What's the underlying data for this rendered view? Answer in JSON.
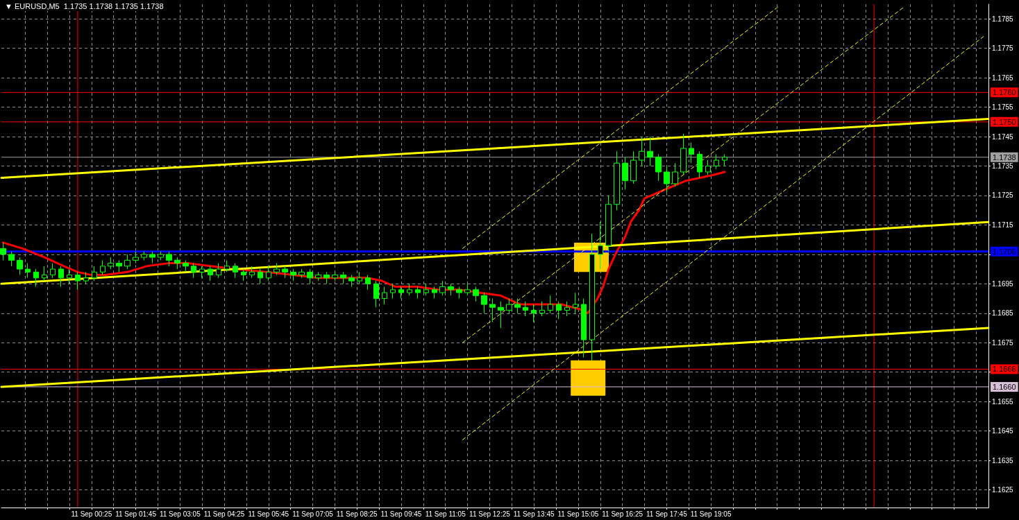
{
  "chart_data": {
    "type": "candlestick",
    "title": "▼ EURUSD,M5  1.1735 1.1738 1.1735 1.1738",
    "grid": true,
    "x": [
      "--09-10T21:45",
      "--09-10T22:00",
      "--09-10T22:15",
      "--09-10T22:30",
      "--09-10T22:45",
      "--09-10T23:00",
      "--09-10T23:15",
      "--09-10T23:30",
      "--09-10T23:45",
      "--09-11T00:00",
      "--09-11T00:15",
      "--09-11T00:30",
      "--09-11T00:45",
      "--09-11T01:00",
      "--09-11T01:15",
      "--09-11T01:30",
      "--09-11T01:45",
      "--09-11T02:00",
      "--09-11T02:15",
      "--09-11T02:30",
      "--09-11T02:45",
      "--09-11T03:00",
      "--09-11T03:15",
      "--09-11T03:30",
      "--09-11T03:45",
      "--09-11T04:00",
      "--09-11T04:15",
      "--09-11T04:30",
      "--09-11T04:45",
      "--09-11T05:00",
      "--09-11T05:15",
      "--09-11T05:30",
      "--09-11T05:45",
      "--09-11T06:00",
      "--09-11T06:15",
      "--09-11T06:30",
      "--09-11T06:45",
      "--09-11T07:00",
      "--09-11T07:15",
      "--09-11T07:30",
      "--09-11T07:45",
      "--09-11T08:00",
      "--09-11T08:15",
      "--09-11T08:30",
      "--09-11T08:45",
      "--09-11T09:00",
      "--09-11T09:15",
      "--09-11T09:30",
      "--09-11T09:45",
      "--09-11T10:00",
      "--09-11T10:15",
      "--09-11T10:30",
      "--09-11T10:45",
      "--09-11T11:00",
      "--09-11T11:15",
      "--09-11T11:30",
      "--09-11T11:45",
      "--09-11T12:00",
      "--09-11T12:15",
      "--09-11T12:30",
      "--09-11T12:45",
      "--09-11T13:00",
      "--09-11T13:15",
      "--09-11T13:30",
      "--09-11T13:45",
      "--09-11T14:00",
      "--09-11T14:15",
      "--09-11T14:30",
      "--09-11T14:45",
      "--09-11T15:00",
      "--09-11T15:15",
      "--09-11T15:30",
      "--09-11T15:45",
      "--09-11T16:00",
      "--09-11T16:15",
      "--09-11T16:30",
      "--09-11T16:45",
      "--09-11T17:00",
      "--09-11T17:15",
      "--09-11T17:30",
      "--09-11T17:45",
      "--09-11T18:00",
      "--09-11T18:15",
      "--09-11T18:30",
      "--09-11T18:45",
      "--09-11T19:00",
      "--09-11T19:15",
      "--09-11T19:30"
    ],
    "ohlc": [
      [
        1.1707,
        1.1709,
        1.1703,
        1.1705
      ],
      [
        1.1705,
        1.1706,
        1.1701,
        1.1703
      ],
      [
        1.1703,
        1.1704,
        1.1698,
        1.17
      ],
      [
        1.17,
        1.1702,
        1.1697,
        1.1699
      ],
      [
        1.1699,
        1.17,
        1.1694,
        1.1697
      ],
      [
        1.1697,
        1.1701,
        1.1696,
        1.1698
      ],
      [
        1.1698,
        1.1702,
        1.1697,
        1.17
      ],
      [
        1.17,
        1.1701,
        1.1694,
        1.1697
      ],
      [
        1.1697,
        1.17,
        1.1695,
        1.1698
      ],
      [
        1.1698,
        1.1699,
        1.1693,
        1.1696
      ],
      [
        1.1696,
        1.1699,
        1.1695,
        1.1697
      ],
      [
        1.1697,
        1.1701,
        1.1696,
        1.1699
      ],
      [
        1.1699,
        1.1703,
        1.1698,
        1.1701
      ],
      [
        1.1701,
        1.1704,
        1.17,
        1.1702
      ],
      [
        1.1702,
        1.1703,
        1.1699,
        1.1701
      ],
      [
        1.1701,
        1.1705,
        1.17,
        1.1703
      ],
      [
        1.1703,
        1.1706,
        1.1702,
        1.1704
      ],
      [
        1.1704,
        1.1706,
        1.1703,
        1.1705
      ],
      [
        1.1705,
        1.1706,
        1.1702,
        1.1704
      ],
      [
        1.1704,
        1.1706,
        1.1703,
        1.1705
      ],
      [
        1.1705,
        1.1706,
        1.1701,
        1.1703
      ],
      [
        1.1703,
        1.1704,
        1.17,
        1.1702
      ],
      [
        1.1702,
        1.1703,
        1.1699,
        1.1701
      ],
      [
        1.1701,
        1.1702,
        1.1697,
        1.1699
      ],
      [
        1.1699,
        1.1701,
        1.1697,
        1.17
      ],
      [
        1.17,
        1.1701,
        1.1696,
        1.1698
      ],
      [
        1.1698,
        1.1702,
        1.1697,
        1.17
      ],
      [
        1.17,
        1.1703,
        1.1699,
        1.1701
      ],
      [
        1.1701,
        1.1702,
        1.1697,
        1.1699
      ],
      [
        1.1699,
        1.17,
        1.1696,
        1.1698
      ],
      [
        1.1698,
        1.1701,
        1.1697,
        1.1699
      ],
      [
        1.1699,
        1.17,
        1.1695,
        1.1697
      ],
      [
        1.1697,
        1.1701,
        1.1696,
        1.1699
      ],
      [
        1.1699,
        1.1702,
        1.1698,
        1.17
      ],
      [
        1.17,
        1.1701,
        1.1697,
        1.1699
      ],
      [
        1.1699,
        1.17,
        1.1696,
        1.1698
      ],
      [
        1.1698,
        1.17,
        1.1697,
        1.1699
      ],
      [
        1.1699,
        1.17,
        1.1695,
        1.1697
      ],
      [
        1.1697,
        1.1699,
        1.1696,
        1.1698
      ],
      [
        1.1698,
        1.1699,
        1.1695,
        1.1697
      ],
      [
        1.1697,
        1.1699,
        1.1696,
        1.1698
      ],
      [
        1.1698,
        1.1699,
        1.1695,
        1.1697
      ],
      [
        1.1697,
        1.1698,
        1.1694,
        1.1696
      ],
      [
        1.1696,
        1.1699,
        1.1695,
        1.1697
      ],
      [
        1.1697,
        1.1698,
        1.1693,
        1.1695
      ],
      [
        1.1695,
        1.1696,
        1.1687,
        1.169
      ],
      [
        1.169,
        1.1694,
        1.1688,
        1.1692
      ],
      [
        1.1692,
        1.1695,
        1.169,
        1.1693
      ],
      [
        1.1693,
        1.1694,
        1.169,
        1.1692
      ],
      [
        1.1692,
        1.1695,
        1.1691,
        1.1693
      ],
      [
        1.1693,
        1.1694,
        1.169,
        1.1692
      ],
      [
        1.1692,
        1.1695,
        1.1691,
        1.1693
      ],
      [
        1.1693,
        1.1694,
        1.169,
        1.1692
      ],
      [
        1.1692,
        1.1696,
        1.1691,
        1.1694
      ],
      [
        1.1694,
        1.1695,
        1.1691,
        1.1693
      ],
      [
        1.1693,
        1.1694,
        1.169,
        1.1692
      ],
      [
        1.1692,
        1.1695,
        1.1691,
        1.1693
      ],
      [
        1.1693,
        1.1694,
        1.1689,
        1.1691
      ],
      [
        1.1691,
        1.1692,
        1.1685,
        1.1688
      ],
      [
        1.1688,
        1.169,
        1.1682,
        1.1687
      ],
      [
        1.1687,
        1.1689,
        1.168,
        1.1686
      ],
      [
        1.1686,
        1.169,
        1.1685,
        1.1688
      ],
      [
        1.1688,
        1.169,
        1.1685,
        1.1687
      ],
      [
        1.1687,
        1.1689,
        1.1684,
        1.1686
      ],
      [
        1.1686,
        1.1688,
        1.1682,
        1.1685
      ],
      [
        1.1685,
        1.1689,
        1.1684,
        1.1686
      ],
      [
        1.1686,
        1.1691,
        1.1685,
        1.1688
      ],
      [
        1.1688,
        1.1689,
        1.1683,
        1.1686
      ],
      [
        1.1686,
        1.1689,
        1.1684,
        1.1687
      ],
      [
        1.1687,
        1.1692,
        1.1685,
        1.1688
      ],
      [
        1.1688,
        1.169,
        1.167,
        1.1676
      ],
      [
        1.1676,
        1.1712,
        1.1669,
        1.1705
      ],
      [
        1.1705,
        1.1716,
        1.17,
        1.1708
      ],
      [
        1.1708,
        1.1725,
        1.1706,
        1.1722
      ],
      [
        1.1722,
        1.174,
        1.172,
        1.1736
      ],
      [
        1.1736,
        1.1738,
        1.1727,
        1.173
      ],
      [
        1.173,
        1.174,
        1.1729,
        1.1737
      ],
      [
        1.1737,
        1.1745,
        1.1735,
        1.174
      ],
      [
        1.174,
        1.1745,
        1.1735,
        1.1738
      ],
      [
        1.1738,
        1.1739,
        1.173,
        1.1733
      ],
      [
        1.1733,
        1.1735,
        1.1726,
        1.1729
      ],
      [
        1.1729,
        1.1736,
        1.1728,
        1.1733
      ],
      [
        1.1733,
        1.1746,
        1.1732,
        1.1741
      ],
      [
        1.1741,
        1.1743,
        1.1736,
        1.1739
      ],
      [
        1.1739,
        1.174,
        1.1731,
        1.1733
      ],
      [
        1.1733,
        1.1737,
        1.1732,
        1.1735
      ],
      [
        1.1735,
        1.1739,
        1.1734,
        1.1737
      ],
      [
        1.1737,
        1.1739,
        1.1735,
        1.1738
      ]
    ],
    "color": "#00ff00",
    "series": [
      {
        "type": "line",
        "color": "#ff0000",
        "marker": "none",
        "line_style": "solid",
        "x": [
          "--09-10T21:45",
          "--09-10T22:20",
          "--09-10T23:00",
          "--09-10T23:35",
          "--09-11T00:00",
          "--09-11T00:25",
          "--09-11T00:50",
          "--09-11T01:30",
          "--09-11T02:05",
          "--09-11T02:45",
          "--09-11T03:20",
          "--09-11T04:00",
          "--09-11T04:45",
          "--09-11T05:40",
          "--09-11T06:30",
          "--09-11T07:15",
          "--09-11T08:10",
          "--09-11T08:45",
          "--09-11T09:10",
          "--09-11T09:35",
          "--09-11T10:15",
          "--09-11T10:50",
          "--09-11T11:30",
          "--09-11T12:05",
          "--09-11T12:45",
          "--09-11T13:20",
          "--09-11T14:00",
          "--09-11T14:35",
          "--09-11T15:15",
          "--09-11T15:22",
          "--09-11T15:40",
          "--09-11T15:50",
          "--09-11T16:00",
          "--09-11T16:15",
          "--09-11T16:30",
          "--09-11T16:40",
          "--09-11T16:55",
          "--09-11T17:05",
          "--09-11T17:30",
          "--09-11T17:55",
          "--09-11T18:20",
          "--09-11T18:45",
          "--09-11T19:10",
          "--09-11T19:30"
        ],
        "values": [
          1.1709,
          1.1707,
          1.1704,
          1.1701,
          1.1699,
          1.1698,
          1.1698,
          1.1699,
          1.1701,
          1.1702,
          1.1702,
          1.1701,
          1.17,
          1.1699,
          1.1698,
          1.1697,
          1.1697,
          1.1697,
          1.1696,
          1.1694,
          1.1694,
          1.1693,
          1.1693,
          1.1692,
          1.1691,
          1.1688,
          1.1688,
          1.1688,
          1.1686,
          1.1685,
          1.169,
          1.1694,
          1.17,
          1.1706,
          1.1711,
          1.1716,
          1.172,
          1.1724,
          1.1726,
          1.1728,
          1.173,
          1.1731,
          1.1732,
          1.1733
        ]
      },
      {
        "type": "line",
        "color": "#ffff00",
        "marker": "none",
        "line_style": "solid",
        "x": [
          "--09-10T21:42",
          "--09-12T03:27"
        ],
        "values": [
          1.1731,
          1.1751
        ]
      },
      {
        "type": "line",
        "color": "#ffff00",
        "marker": "none",
        "line_style": "solid",
        "x": [
          "--09-10T21:42",
          "--09-12T03:27"
        ],
        "values": [
          1.1695,
          1.1716
        ]
      },
      {
        "type": "line",
        "color": "#ffff00",
        "marker": "none",
        "line_style": "solid",
        "x": [
          "--09-10T21:42",
          "--09-12T03:27"
        ],
        "values": [
          1.166,
          1.168
        ]
      },
      {
        "type": "line",
        "color": "#ffff00",
        "marker": "none",
        "line_style": "dashed",
        "x": [
          "--09-11T11:36",
          "--09-11T21:06"
        ],
        "values": [
          1.1707,
          1.1789
        ]
      },
      {
        "type": "line",
        "color": "#ffff00",
        "marker": "none",
        "line_style": "dashed",
        "x": [
          "--09-11T11:36",
          "--09-12T00:54"
        ],
        "values": [
          1.1675,
          1.1789
        ]
      },
      {
        "type": "line",
        "color": "#ffff00",
        "marker": "none",
        "line_style": "dashed",
        "x": [
          "--09-11T11:36",
          "--09-12T03:18"
        ],
        "values": [
          1.1642,
          1.1779
        ]
      },
      {
        "type": "bar",
        "color": "#ffcc00",
        "x": [
          "--09-11T15:23",
          "--09-11T15:29"
        ],
        "base": [
          1.1657,
          1.1699
        ],
        "values": [
          0.0012,
          0.001
        ]
      }
    ],
    "ref_lines": [
      {
        "axis": "x",
        "value": "--09-11T00:00",
        "color": "#ff0000"
      },
      {
        "axis": "x",
        "value": "--09-12T00:00",
        "color": "#ff0000"
      },
      {
        "axis": "y",
        "value": 1.176,
        "label": "1.1760",
        "color": "#ff0000"
      },
      {
        "axis": "y",
        "value": 1.175,
        "label": "1.1750",
        "color": "#ff0000"
      },
      {
        "axis": "y",
        "value": 1.1738,
        "label": "1.1738",
        "color": "#a0a0a0"
      },
      {
        "axis": "y",
        "value": 1.1706,
        "label": "1.1706",
        "color": "#0000ff"
      },
      {
        "axis": "y",
        "value": 1.1666,
        "label": "1.1666",
        "color": "#ff0000"
      },
      {
        "axis": "y",
        "value": 1.166,
        "label": "1.1660",
        "color": "#d8bfd8"
      }
    ],
    "xlim": [
      "--09-10T21:42",
      "--09-12T03:27"
    ],
    "xticks": [
      {
        "value": "--09-10T22:25",
        "label": null
      },
      {
        "value": "--09-10T23:05",
        "label": null
      },
      {
        "value": "--09-10T23:45",
        "label": null
      },
      {
        "value": "--09-11T00:25",
        "label": "11 Sep 00:25"
      },
      {
        "value": "--09-11T01:05",
        "label": null
      },
      {
        "value": "--09-11T01:45",
        "label": "11 Sep 01:45"
      },
      {
        "value": "--09-11T02:25",
        "label": null
      },
      {
        "value": "--09-11T03:05",
        "label": "11 Sep 03:05"
      },
      {
        "value": "--09-11T03:45",
        "label": null
      },
      {
        "value": "--09-11T04:25",
        "label": "11 Sep 04:25"
      },
      {
        "value": "--09-11T05:05",
        "label": null
      },
      {
        "value": "--09-11T05:45",
        "label": "11 Sep 05:45"
      },
      {
        "value": "--09-11T06:25",
        "label": null
      },
      {
        "value": "--09-11T07:05",
        "label": "11 Sep 07:05"
      },
      {
        "value": "--09-11T07:45",
        "label": null
      },
      {
        "value": "--09-11T08:25",
        "label": "11 Sep 08:25"
      },
      {
        "value": "--09-11T09:05",
        "label": null
      },
      {
        "value": "--09-11T09:45",
        "label": "11 Sep 09:45"
      },
      {
        "value": "--09-11T10:25",
        "label": null
      },
      {
        "value": "--09-11T11:05",
        "label": "11 Sep 11:05"
      },
      {
        "value": "--09-11T11:45",
        "label": null
      },
      {
        "value": "--09-11T12:25",
        "label": "11 Sep 12:25"
      },
      {
        "value": "--09-11T13:05",
        "label": null
      },
      {
        "value": "--09-11T13:45",
        "label": "11 Sep 13:45"
      },
      {
        "value": "--09-11T14:25",
        "label": null
      },
      {
        "value": "--09-11T15:05",
        "label": "11 Sep 15:05"
      },
      {
        "value": "--09-11T15:45",
        "label": null
      },
      {
        "value": "--09-11T16:25",
        "label": "11 Sep 16:25"
      },
      {
        "value": "--09-11T17:05",
        "label": null
      },
      {
        "value": "--09-11T17:45",
        "label": "11 Sep 17:45"
      },
      {
        "value": "--09-11T18:25",
        "label": null
      },
      {
        "value": "--09-11T19:05",
        "label": "11 Sep 19:05"
      },
      {
        "value": "--09-11T19:45",
        "label": null
      },
      {
        "value": "--09-11T20:25",
        "label": null
      },
      {
        "value": "--09-11T21:05",
        "label": null
      },
      {
        "value": "--09-11T21:45",
        "label": null
      },
      {
        "value": "--09-11T22:25",
        "label": null
      },
      {
        "value": "--09-11T23:05",
        "label": null
      },
      {
        "value": "--09-11T23:45",
        "label": null
      },
      {
        "value": "--09-12T00:25",
        "label": null
      },
      {
        "value": "--09-12T01:05",
        "label": null
      },
      {
        "value": "--09-12T01:45",
        "label": null
      },
      {
        "value": "--09-12T02:25",
        "label": null
      },
      {
        "value": "--09-12T03:05",
        "label": null
      }
    ],
    "ylim": [
      1.1619,
      1.179
    ],
    "yticks": [
      1.1625,
      1.1635,
      1.1645,
      1.1655,
      {
        "value": 1.1665,
        "label": null
      },
      1.1675,
      1.1685,
      1.1695,
      {
        "value": 1.1705,
        "label": null
      },
      1.1715,
      1.1725,
      1.1735,
      1.1745,
      1.1755,
      1.1765,
      1.1775,
      1.1785
    ]
  }
}
